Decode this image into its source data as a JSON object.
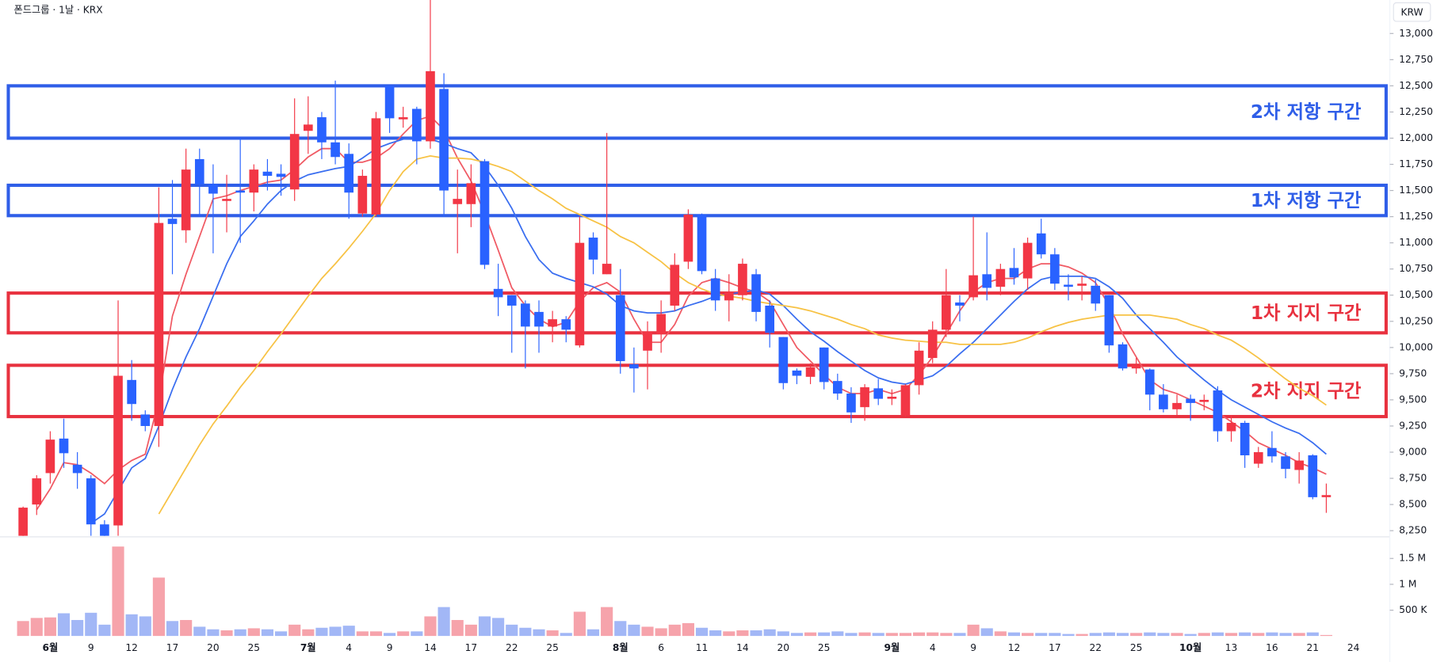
{
  "chart_data": {
    "type": "candlestick",
    "title": "폰드그룹 · 1날 · KRX",
    "currency": "KRW",
    "categories": [
      null,
      null,
      "6월",
      null,
      null,
      "9",
      null,
      null,
      "12",
      null,
      null,
      "17",
      null,
      null,
      "20",
      null,
      null,
      "25",
      null,
      null,
      null,
      "7월",
      null,
      null,
      "4",
      null,
      null,
      "9",
      null,
      null,
      "14",
      null,
      null,
      "17",
      null,
      null,
      "22",
      null,
      null,
      "25",
      null,
      null,
      null,
      null,
      "8월",
      null,
      null,
      "6",
      null,
      null,
      "11",
      null,
      null,
      "14",
      null,
      null,
      "20",
      null,
      null,
      "25",
      null,
      null,
      null,
      null,
      "9월",
      null,
      null,
      "4",
      null,
      null,
      "9",
      null,
      null,
      "12",
      null,
      null,
      "17",
      null,
      null,
      "22",
      null,
      null,
      "25",
      null,
      null,
      null,
      "10월",
      null,
      null,
      "13",
      null,
      null,
      "16",
      null,
      null,
      "21",
      null,
      null,
      "24"
    ],
    "open": [
      8200,
      8500,
      8800,
      9130,
      8880,
      8750,
      8310,
      8300,
      9690,
      9360,
      9250,
      11230,
      11120,
      11800,
      11560,
      11400,
      11500,
      11480,
      11680,
      11660,
      11510,
      12070,
      12200,
      11960,
      11850,
      11280,
      11270,
      12500,
      12180,
      12280,
      11970,
      12470,
      11370,
      11370,
      11780,
      10560,
      10500,
      10420,
      10340,
      10200,
      10270,
      10020,
      11050,
      10700,
      10500,
      9840,
      9970,
      10130,
      10400,
      10820,
      11270,
      10660,
      10450,
      10500,
      10700,
      10400,
      10100,
      9780,
      9720,
      10000,
      9680,
      9560,
      9430,
      9610,
      9510,
      9350,
      9640,
      9900,
      10170,
      10430,
      10480,
      10700,
      10580,
      10760,
      10660,
      11090,
      10890,
      10600,
      10590,
      10590,
      10500,
      10030,
      9800,
      9790,
      9550,
      9410,
      9510,
      9480,
      9590,
      9200,
      9280,
      8890,
      9040,
      8960,
      8830,
      8970,
      8570,
      null,
      null
    ],
    "high": [
      8480,
      8780,
      9200,
      9320,
      9000,
      8780,
      8350,
      10450,
      9880,
      9400,
      11530,
      11600,
      11900,
      11900,
      11750,
      11650,
      12000,
      11750,
      11800,
      11750,
      12380,
      12400,
      12250,
      12550,
      11950,
      11700,
      12250,
      12500,
      12300,
      12300,
      13320,
      12620,
      11700,
      11750,
      11800,
      10800,
      10500,
      10450,
      10450,
      10350,
      10300,
      11250,
      11100,
      12050,
      10750,
      10000,
      10250,
      10450,
      10900,
      11320,
      11280,
      10750,
      10700,
      10850,
      10750,
      10450,
      10100,
      9800,
      9850,
      10000,
      9750,
      9620,
      9650,
      9700,
      9600,
      9650,
      10050,
      10250,
      10750,
      10500,
      11250,
      11100,
      10800,
      10950,
      11050,
      11230,
      10950,
      10700,
      10680,
      10650,
      10500,
      10050,
      9900,
      9800,
      9650,
      9550,
      9550,
      9550,
      9630,
      9350,
      9300,
      9050,
      9200,
      9000,
      9000,
      8980,
      8700,
      null,
      null
    ],
    "low": [
      8150,
      8400,
      8700,
      8850,
      8650,
      8200,
      8100,
      8200,
      9300,
      9200,
      9050,
      10700,
      11000,
      11250,
      10900,
      11100,
      11000,
      11300,
      11500,
      11450,
      11400,
      11850,
      11800,
      11750,
      11230,
      11250,
      11250,
      12050,
      12100,
      11750,
      11900,
      11250,
      10900,
      11150,
      10750,
      10300,
      9950,
      9800,
      9950,
      10050,
      10050,
      10000,
      10700,
      10700,
      9750,
      9570,
      9600,
      9950,
      10350,
      10750,
      10700,
      10350,
      10250,
      10450,
      10250,
      10000,
      9600,
      9650,
      9650,
      9600,
      9500,
      9280,
      9300,
      9450,
      9450,
      9340,
      9550,
      9850,
      10100,
      10250,
      10450,
      10450,
      10500,
      10600,
      10550,
      10850,
      10550,
      10450,
      10450,
      10350,
      9950,
      9780,
      9750,
      9400,
      9380,
      9350,
      9300,
      9400,
      9100,
      9100,
      8850,
      8850,
      8900,
      8750,
      8700,
      8550,
      8420,
      null,
      null
    ],
    "close": [
      8470,
      8750,
      9120,
      8990,
      8800,
      8310,
      8200,
      9730,
      9460,
      9250,
      11190,
      11180,
      11700,
      11560,
      11470,
      11420,
      11480,
      11700,
      11640,
      11630,
      12040,
      12130,
      11960,
      11820,
      11480,
      11640,
      12190,
      12190,
      12200,
      11970,
      12640,
      11500,
      11420,
      11570,
      10790,
      10480,
      10400,
      10200,
      10200,
      10270,
      10170,
      11000,
      10840,
      10800,
      9870,
      9800,
      10150,
      10320,
      10790,
      11270,
      10730,
      10450,
      10530,
      10800,
      10340,
      10140,
      9660,
      9730,
      9810,
      9670,
      9560,
      9380,
      9620,
      9510,
      9530,
      9640,
      9970,
      10170,
      10500,
      10400,
      10690,
      10570,
      10750,
      10670,
      11000,
      10890,
      10610,
      10580,
      10610,
      10420,
      10020,
      9800,
      9830,
      9550,
      9410,
      9470,
      9470,
      9500,
      9200,
      9280,
      8970,
      9000,
      8960,
      8840,
      8920,
      8570,
      8590,
      null,
      null
    ],
    "up_color": "#f23645",
    "down_color": "#2962ff",
    "ylim": [
      8200,
      13320
    ],
    "yticks": [
      {
        "value": 8250,
        "label": "8,250"
      },
      {
        "value": 8500,
        "label": "8,500"
      },
      {
        "value": 8750,
        "label": "8,750"
      },
      {
        "value": 9000,
        "label": "9,000"
      },
      {
        "value": 9250,
        "label": "9,250"
      },
      {
        "value": 9500,
        "label": "9,500"
      },
      {
        "value": 9750,
        "label": "9,750"
      },
      {
        "value": 10000,
        "label": "10,000"
      },
      {
        "value": 10250,
        "label": "10,250"
      },
      {
        "value": 10500,
        "label": "10,500"
      },
      {
        "value": 10750,
        "label": "10,750"
      },
      {
        "value": 11000,
        "label": "11,000"
      },
      {
        "value": 11250,
        "label": "11,250"
      },
      {
        "value": 11500,
        "label": "11,500"
      },
      {
        "value": 11750,
        "label": "11,750"
      },
      {
        "value": 12000,
        "label": "12,000"
      },
      {
        "value": 12250,
        "label": "12,250"
      },
      {
        "value": 12500,
        "label": "12,500"
      },
      {
        "value": 12750,
        "label": "12,750"
      },
      {
        "value": 13000,
        "label": "13,000"
      }
    ],
    "moving_averages": [
      {
        "color": "#f05a64",
        "values": [
          null,
          8450,
          8650,
          8900,
          8880,
          8800,
          8700,
          8830,
          8920,
          8980,
          9500,
          10300,
          10700,
          11060,
          11420,
          11450,
          11500,
          11540,
          11580,
          11600,
          11700,
          11820,
          11900,
          11900,
          11770,
          11770,
          11810,
          11900,
          12040,
          12170,
          12210,
          12080,
          11810,
          11590,
          11280,
          10930,
          10570,
          10400,
          10270,
          10200,
          10240,
          10440,
          10570,
          10620,
          10530,
          10270,
          10050,
          10050,
          10220,
          10490,
          10620,
          10660,
          10620,
          10570,
          10530,
          10440,
          10220,
          10000,
          9870,
          9740,
          9620,
          9560,
          9560,
          9600,
          9560,
          9600,
          9740,
          9910,
          10130,
          10350,
          10530,
          10620,
          10660,
          10660,
          10750,
          10800,
          10800,
          10770,
          10710,
          10620,
          10400,
          10130,
          9910,
          9690,
          9600,
          9560,
          9500,
          9440,
          9380,
          9290,
          9200,
          9090,
          9030,
          8970,
          8900,
          8850,
          8790,
          null,
          null
        ]
      },
      {
        "color": "#3a6ef0",
        "values": [
          null,
          null,
          null,
          null,
          null,
          8320,
          8410,
          8630,
          8850,
          8940,
          9250,
          9600,
          9910,
          10180,
          10490,
          10800,
          11060,
          11210,
          11370,
          11500,
          11590,
          11650,
          11680,
          11710,
          11730,
          11810,
          11900,
          11950,
          11990,
          12010,
          11990,
          11950,
          11900,
          11860,
          11730,
          11550,
          11330,
          11060,
          10840,
          10710,
          10660,
          10620,
          10580,
          10510,
          10400,
          10350,
          10330,
          10330,
          10350,
          10400,
          10440,
          10490,
          10510,
          10530,
          10550,
          10510,
          10400,
          10270,
          10150,
          10060,
          9960,
          9870,
          9780,
          9710,
          9670,
          9650,
          9690,
          9730,
          9820,
          9940,
          10050,
          10180,
          10310,
          10440,
          10560,
          10650,
          10680,
          10680,
          10680,
          10660,
          10580,
          10470,
          10310,
          10180,
          10050,
          9910,
          9800,
          9690,
          9590,
          9500,
          9430,
          9360,
          9290,
          9230,
          9180,
          9090,
          8980,
          null,
          null
        ]
      },
      {
        "color": "#f7c244",
        "values": [
          null,
          null,
          null,
          null,
          null,
          null,
          null,
          null,
          null,
          null,
          8410,
          8630,
          8850,
          9070,
          9270,
          9440,
          9620,
          9780,
          9960,
          10130,
          10310,
          10490,
          10660,
          10800,
          10950,
          11110,
          11280,
          11500,
          11680,
          11800,
          11830,
          11810,
          11810,
          11800,
          11770,
          11730,
          11680,
          11590,
          11500,
          11420,
          11330,
          11270,
          11210,
          11150,
          11060,
          11000,
          10910,
          10820,
          10710,
          10620,
          10560,
          10510,
          10490,
          10470,
          10440,
          10420,
          10400,
          10380,
          10350,
          10310,
          10270,
          10220,
          10180,
          10120,
          10090,
          10070,
          10060,
          10050,
          10050,
          10030,
          10030,
          10030,
          10030,
          10050,
          10090,
          10150,
          10200,
          10240,
          10270,
          10290,
          10310,
          10310,
          10310,
          10310,
          10290,
          10270,
          10220,
          10180,
          10120,
          10070,
          9990,
          9900,
          9800,
          9700,
          9610,
          9540,
          9450,
          null,
          null
        ]
      }
    ],
    "zones": [
      {
        "label": "2차 저항 구간",
        "low": 12000,
        "high": 12500,
        "color": "#2f5ee8"
      },
      {
        "label": "1차 저항 구간",
        "low": 11260,
        "high": 11550,
        "color": "#2f5ee8"
      },
      {
        "label": "1차 지지 구간",
        "low": 10140,
        "high": 10520,
        "color": "#e8313f"
      },
      {
        "label": "2차 지지 구간",
        "low": 9340,
        "high": 9830,
        "color": "#e8313f"
      }
    ],
    "volume": {
      "values": [
        290000,
        350000,
        360000,
        440000,
        310000,
        450000,
        220000,
        1730000,
        420000,
        380000,
        1130000,
        290000,
        310000,
        180000,
        130000,
        110000,
        130000,
        150000,
        130000,
        90000,
        220000,
        130000,
        160000,
        180000,
        200000,
        90000,
        90000,
        60000,
        90000,
        90000,
        380000,
        560000,
        310000,
        220000,
        380000,
        350000,
        220000,
        160000,
        130000,
        110000,
        60000,
        470000,
        130000,
        560000,
        290000,
        220000,
        180000,
        150000,
        220000,
        250000,
        160000,
        110000,
        90000,
        110000,
        110000,
        130000,
        90000,
        60000,
        70000,
        70000,
        90000,
        60000,
        70000,
        60000,
        60000,
        60000,
        70000,
        70000,
        60000,
        60000,
        220000,
        150000,
        90000,
        70000,
        60000,
        60000,
        60000,
        40000,
        40000,
        60000,
        70000,
        60000,
        60000,
        70000,
        60000,
        60000,
        40000,
        60000,
        70000,
        60000,
        70000,
        60000,
        70000,
        60000,
        60000,
        70000,
        20000,
        null,
        null
      ],
      "ylim": [
        0,
        1900000
      ],
      "yticks": [
        {
          "value": 500000,
          "label": "500 K"
        },
        {
          "value": 1000000,
          "label": "1 M"
        },
        {
          "value": 1500000,
          "label": "1.5 M"
        }
      ],
      "up_color": "#f6a3ab",
      "down_color": "#a2b7f6"
    }
  }
}
